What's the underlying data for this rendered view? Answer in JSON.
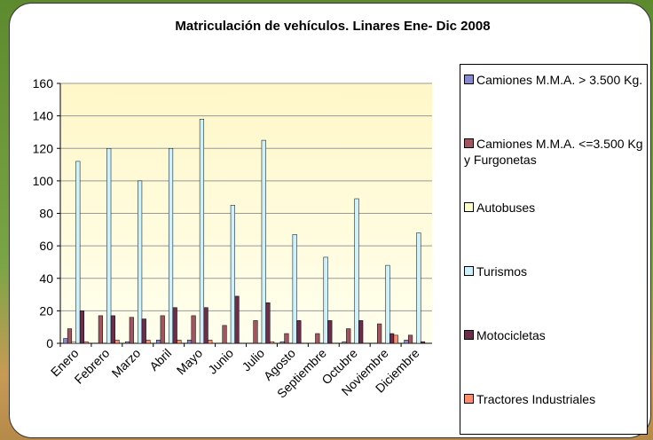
{
  "chart_data": {
    "type": "bar",
    "title": "Matriculación de vehículos. Linares Ene- Dic 2008",
    "categories": [
      "Enero",
      "Febrero",
      "Marzo",
      "Abril",
      "Mayo",
      "Junio",
      "Julio",
      "Agosto",
      "Septiembre",
      "Octubre",
      "Noviembre",
      "Diciembre"
    ],
    "series": [
      {
        "name": "Camiones M.M.A. > 3.500 Kg.",
        "color": "#8888cc",
        "values": [
          3,
          0,
          1,
          2,
          2,
          0,
          0,
          1,
          0,
          1,
          0,
          2
        ]
      },
      {
        "name": "Camiones M.M.A. <=3.500 Kg y Furgonetas",
        "color": "#a05560",
        "values": [
          9,
          17,
          16,
          17,
          17,
          11,
          14,
          6,
          6,
          9,
          12,
          5
        ]
      },
      {
        "name": "Autobuses",
        "color": "#ffffcc",
        "values": [
          1,
          0,
          0,
          0,
          0,
          0,
          0,
          0,
          0,
          0,
          0,
          0
        ]
      },
      {
        "name": "Turismos",
        "color": "#ccf2ff",
        "values": [
          112,
          120,
          100,
          120,
          138,
          85,
          125,
          67,
          53,
          89,
          48,
          68
        ]
      },
      {
        "name": "Motocicletas",
        "color": "#6b2d4a",
        "values": [
          20,
          17,
          15,
          22,
          22,
          29,
          25,
          14,
          14,
          14,
          6,
          1
        ]
      },
      {
        "name": "Tractores Industriales",
        "color": "#ff8c6b",
        "values": [
          1,
          2,
          2,
          2,
          2,
          0,
          1,
          0,
          0,
          0,
          5,
          0
        ]
      }
    ],
    "ylim": [
      0,
      160
    ],
    "yticks": [
      0,
      20,
      40,
      60,
      80,
      100,
      120,
      140,
      160
    ],
    "grid": true
  }
}
